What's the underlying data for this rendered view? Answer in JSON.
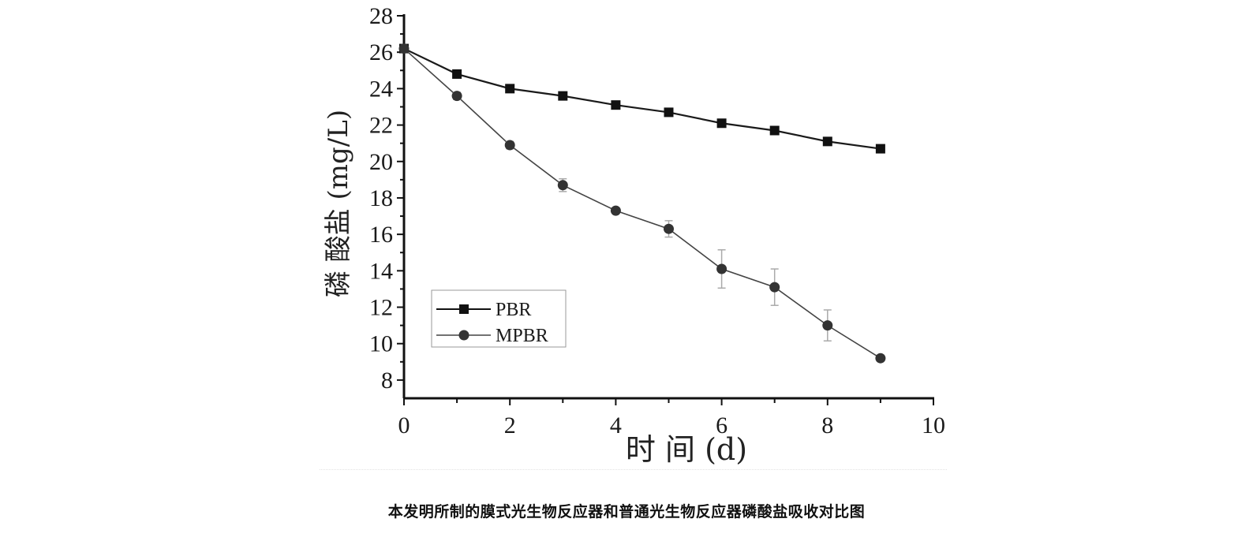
{
  "figure": {
    "caption": "本发明所制的膜式光生物反应器和普通光生物反应器磷酸盐吸收对比图"
  },
  "chart_data": {
    "type": "line",
    "title": "",
    "xlabel": "时 间 (d)",
    "ylabel": "磷 酸盐 (mg/L)",
    "xlim": [
      0,
      10
    ],
    "ylim": [
      7,
      28
    ],
    "x_ticks": [
      0,
      2,
      4,
      6,
      8,
      10
    ],
    "y_ticks": [
      8,
      10,
      12,
      14,
      16,
      18,
      20,
      22,
      24,
      26,
      28
    ],
    "grid": false,
    "legend_position": "lower-left (inside plot)",
    "x": [
      0,
      1,
      2,
      3,
      4,
      5,
      6,
      7,
      8,
      9
    ],
    "series": [
      {
        "name": "PBR",
        "marker": "square",
        "color": "#111111",
        "values": [
          26.2,
          24.8,
          24.0,
          23.6,
          23.1,
          22.7,
          22.1,
          21.7,
          21.1,
          20.7
        ],
        "error": [
          0,
          0,
          0,
          0,
          0,
          0,
          0,
          0,
          0,
          0
        ]
      },
      {
        "name": "MPBR",
        "marker": "circle",
        "color": "#333333",
        "values": [
          26.2,
          23.6,
          20.9,
          18.7,
          17.3,
          16.3,
          14.1,
          13.1,
          11.0,
          9.2
        ],
        "error": [
          0,
          0.2,
          0.2,
          0.35,
          0,
          0.45,
          1.05,
          1.0,
          0.85,
          0
        ]
      }
    ]
  },
  "legend": {
    "items": [
      {
        "label": "PBR"
      },
      {
        "label": "MPBR"
      }
    ]
  },
  "axes": {
    "x_title": "时 间 (d)",
    "y_title": "磷 酸盐 (mg/L)"
  }
}
